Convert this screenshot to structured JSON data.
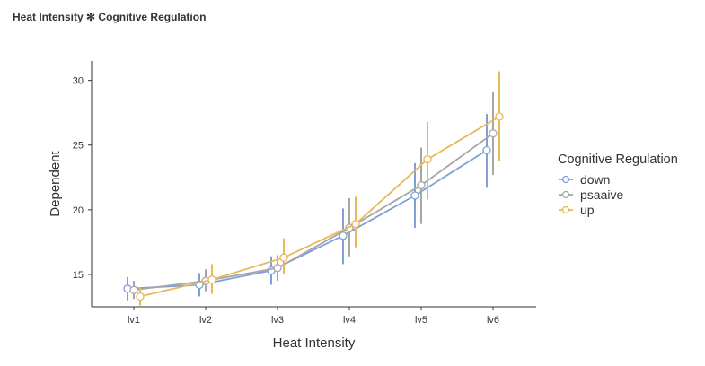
{
  "title": "Heat Intensity ✻ Cognitive Regulation",
  "chart_data": {
    "type": "line",
    "xlabel": "Heat Intensity",
    "ylabel": "Dependent",
    "categories": [
      "lv1",
      "lv2",
      "lv3",
      "lv4",
      "lv5",
      "lv6"
    ],
    "ylim": [
      12.5,
      31.5
    ],
    "yticks": [
      15,
      20,
      25,
      30
    ],
    "grid": false,
    "legend": {
      "title": "Cognitive Regulation",
      "position": "right"
    },
    "series": [
      {
        "name": "down",
        "color": "#7da0d8",
        "values": [
          13.9,
          14.2,
          15.3,
          18.0,
          21.1,
          24.6
        ],
        "lower": [
          13.0,
          13.3,
          14.2,
          15.8,
          18.6,
          21.7
        ],
        "upper": [
          14.8,
          15.1,
          16.4,
          20.1,
          23.6,
          27.4
        ]
      },
      {
        "name": "psaaive",
        "color": "#a6a6a6",
        "values": [
          13.8,
          14.5,
          15.5,
          18.6,
          21.9,
          25.9
        ],
        "lower": [
          13.1,
          13.7,
          14.5,
          16.4,
          18.9,
          22.7
        ],
        "upper": [
          14.5,
          15.4,
          16.5,
          20.9,
          24.8,
          29.1
        ]
      },
      {
        "name": "up",
        "color": "#e8b85a",
        "values": [
          13.3,
          14.6,
          16.3,
          18.9,
          23.9,
          27.2
        ],
        "lower": [
          12.6,
          13.5,
          15.0,
          17.1,
          20.8,
          23.8
        ],
        "upper": [
          14.0,
          15.8,
          17.8,
          21.0,
          26.8,
          30.7
        ]
      }
    ]
  }
}
